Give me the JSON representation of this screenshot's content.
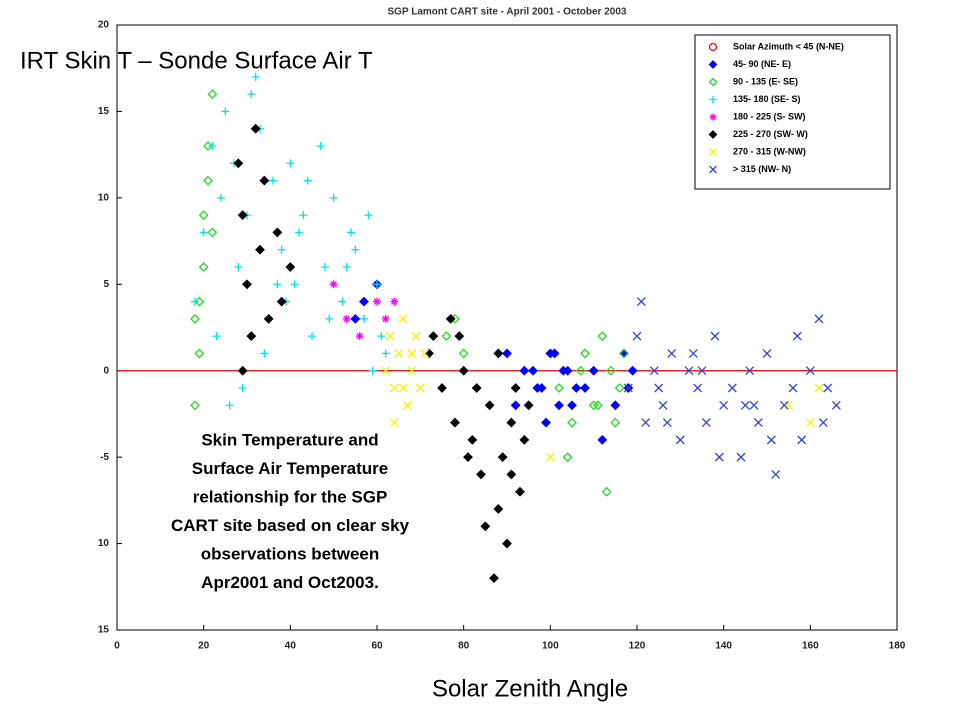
{
  "chart_data": {
    "type": "scatter",
    "title": "SGP Lamont CART site - April 2001 - October 2003",
    "overlay_title": "IRT Skin T – Sonde Surface Air T",
    "x_label": "Solar Zenith Angle",
    "annotation": [
      "Skin Temperature and",
      "Surface Air Temperature",
      "relationship for the SGP",
      "CART site based on clear sky",
      "observations between",
      "Apr2001 and Oct2003."
    ],
    "xlim": [
      0,
      180
    ],
    "xticks": [
      0,
      20,
      40,
      60,
      80,
      100,
      120,
      140,
      160,
      180
    ],
    "ylim": [
      -15,
      20
    ],
    "yticks": [
      {
        "value": -15,
        "label": "15"
      },
      {
        "value": -10,
        "label": "10"
      },
      -5,
      0,
      5,
      10,
      15,
      20
    ],
    "hline": 0,
    "hline_color": "#e00000",
    "legend": "upper right",
    "series": [
      {
        "name": "Solar Azimuth < 45 (N-NE)",
        "color": "#ff0000",
        "marker": "circle",
        "x": [],
        "values": []
      },
      {
        "name": "45- 90 (NE- E)",
        "color": "#0000ff",
        "marker": "diamond",
        "x": [
          55,
          57,
          60,
          96,
          98,
          100,
          102,
          104,
          106,
          90,
          92,
          94,
          97,
          99,
          101,
          103,
          105,
          108,
          110,
          112,
          115,
          118,
          119,
          117
        ],
        "values": [
          3,
          4,
          5,
          0,
          -1,
          1,
          -2,
          0,
          -1,
          1,
          -2,
          0,
          -1,
          -3,
          1,
          0,
          -2,
          -1,
          0,
          -4,
          -2,
          -1,
          0,
          1
        ]
      },
      {
        "name": "90 - 135 (E- SE)",
        "color": "#22dd22",
        "marker": "diamond-open",
        "x": [
          18,
          19,
          20,
          21,
          22,
          19,
          20,
          21,
          18,
          22,
          76,
          78,
          80,
          102,
          105,
          108,
          110,
          112,
          114,
          116,
          117,
          115,
          113,
          111,
          104,
          107
        ],
        "values": [
          -2,
          4,
          9,
          13,
          16,
          1,
          6,
          11,
          3,
          8,
          2,
          3,
          1,
          -1,
          -3,
          1,
          -2,
          2,
          0,
          -1,
          1,
          -3,
          -7,
          -2,
          -5,
          0
        ]
      },
      {
        "name": "135- 180 (SE- S)",
        "color": "#00e5ee",
        "marker": "plus",
        "x": [
          18,
          20,
          22,
          24,
          25,
          27,
          28,
          30,
          31,
          33,
          35,
          36,
          38,
          40,
          41,
          43,
          45,
          47,
          48,
          50,
          52,
          54,
          55,
          57,
          58,
          60,
          61,
          62,
          23,
          29,
          34,
          39,
          44,
          49,
          53,
          59,
          26,
          32,
          37,
          42
        ],
        "values": [
          4,
          8,
          13,
          10,
          15,
          12,
          6,
          9,
          16,
          14,
          3,
          11,
          7,
          12,
          5,
          9,
          2,
          13,
          6,
          10,
          4,
          8,
          7,
          3,
          9,
          5,
          2,
          1,
          2,
          -1,
          1,
          4,
          11,
          3,
          6,
          0,
          -2,
          17,
          5,
          8
        ]
      },
      {
        "name": "180 - 225 (S- SW)",
        "color": "#ff00ff",
        "marker": "star",
        "x": [
          50,
          53,
          56,
          60,
          62,
          64
        ],
        "values": [
          5,
          3,
          2,
          4,
          3,
          4
        ]
      },
      {
        "name": "225 - 270 (SW- W)",
        "color": "#000000",
        "marker": "diamond",
        "x": [
          28,
          29,
          30,
          31,
          32,
          33,
          35,
          37,
          29,
          34,
          38,
          40,
          72,
          75,
          78,
          80,
          82,
          84,
          86,
          88,
          89,
          90,
          91,
          92,
          93,
          94,
          95,
          87,
          85,
          83,
          81,
          79,
          77,
          73,
          91,
          88
        ],
        "values": [
          12,
          9,
          5,
          2,
          14,
          7,
          3,
          8,
          0,
          11,
          4,
          6,
          1,
          -1,
          -3,
          0,
          -4,
          -6,
          -2,
          -8,
          -5,
          -10,
          -3,
          -1,
          -7,
          -4,
          -2,
          -12,
          -9,
          -1,
          -5,
          2,
          3,
          2,
          -6,
          1
        ]
      },
      {
        "name": "270 - 315 (W-NW)",
        "color": "#ffee00",
        "marker": "x",
        "x": [
          62,
          63,
          64,
          65,
          66,
          67,
          68,
          69,
          70,
          71,
          64,
          66,
          68,
          155,
          158,
          160,
          162,
          100
        ],
        "values": [
          0,
          2,
          -1,
          1,
          3,
          -2,
          0,
          2,
          -1,
          1,
          -3,
          -1,
          1,
          -2,
          -4,
          -3,
          -1,
          -5
        ]
      },
      {
        "name": "> 315 (NW- N)",
        "color": "#3344dd",
        "marker": "x",
        "x": [
          118,
          120,
          122,
          124,
          126,
          128,
          130,
          132,
          134,
          136,
          138,
          140,
          142,
          144,
          146,
          148,
          150,
          152,
          154,
          156,
          158,
          160,
          162,
          164,
          166,
          121,
          127,
          133,
          139,
          145,
          151,
          157,
          163,
          125,
          135,
          147
        ],
        "values": [
          -1,
          2,
          -3,
          0,
          -2,
          1,
          -4,
          0,
          -1,
          -3,
          2,
          -2,
          -1,
          -5,
          0,
          -3,
          1,
          -6,
          -2,
          -1,
          -4,
          0,
          3,
          -1,
          -2,
          4,
          -3,
          1,
          -5,
          -2,
          -4,
          2,
          -3,
          -1,
          0,
          -2
        ]
      }
    ]
  }
}
